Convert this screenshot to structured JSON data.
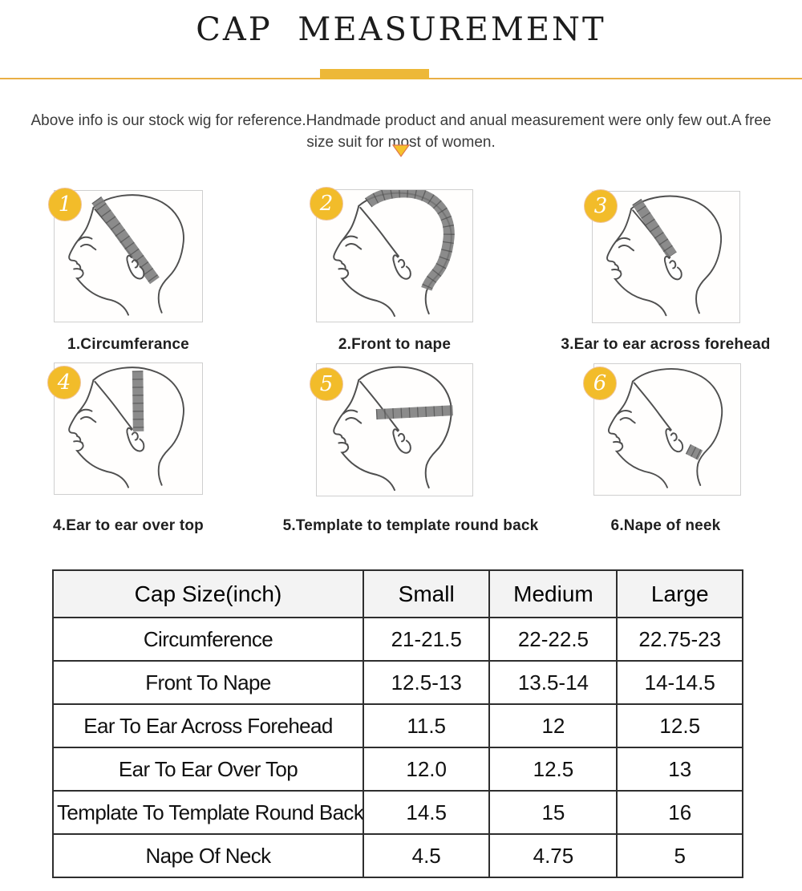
{
  "header": {
    "title": "CAP  MEASUREMENT"
  },
  "intro": {
    "text": "Above info is our stock wig for reference.Handmade product and anual measurement were only few out.A free size suit for most of women."
  },
  "figures": [
    {
      "number": "1",
      "label": "1.Circumferance"
    },
    {
      "number": "2",
      "label": "2.Front to nape"
    },
    {
      "number": "3",
      "label": "3.Ear to ear across forehead"
    },
    {
      "number": "4",
      "label": "4.Ear to ear over top"
    },
    {
      "number": "5",
      "label": "5.Template to template round back"
    },
    {
      "number": "6",
      "label": "6.Nape of neek"
    }
  ],
  "size_table": {
    "columns": [
      "Cap Size(inch)",
      "Small",
      "Medium",
      "Large"
    ],
    "rows": [
      {
        "label": "Circumference",
        "values": [
          "21-21.5",
          "22-22.5",
          "22.75-23"
        ]
      },
      {
        "label": "Front To Nape",
        "values": [
          "12.5-13",
          "13.5-14",
          "14-14.5"
        ]
      },
      {
        "label": "Ear To Ear Across Forehead",
        "values": [
          "11.5",
          "12",
          "12.5"
        ]
      },
      {
        "label": "Ear To Ear Over Top",
        "values": [
          "12.0",
          "12.5",
          "13"
        ]
      },
      {
        "label": "Template To Template Round Back",
        "values": [
          "14.5",
          "15",
          "16"
        ]
      },
      {
        "label": "Nape Of Neck",
        "values": [
          "4.5",
          "4.75",
          "5"
        ]
      }
    ]
  },
  "colors": {
    "gold_bar": "#EDB838",
    "gold_line": "#E9AF45",
    "badge": "#F2BC2A",
    "triangle": "#F5C22B",
    "triangle_edge": "#E0764A",
    "band": "#7B7B7B",
    "table_border": "#2E2E2E",
    "header_bg": "#F3F3F3"
  }
}
